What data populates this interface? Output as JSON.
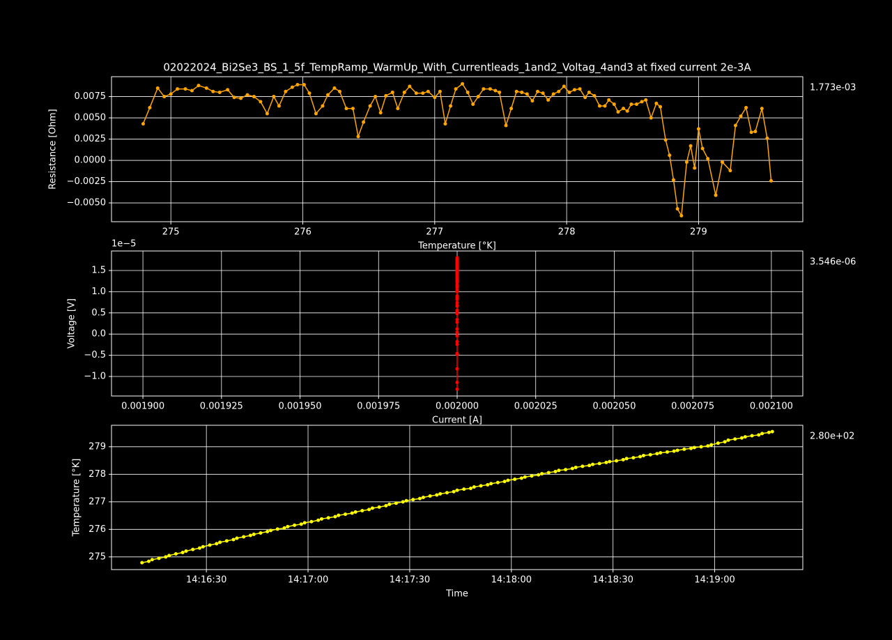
{
  "chart_data": [
    {
      "type": "line",
      "title": "02022024_Bi2Se3_BS_1_5f_TempRamp_WarmUp_With_Currentleads_1and2_Voltag_4and3 at fixed current 2e-3A",
      "x_label": "Temperature [°K]",
      "y_label": "Resistance [Ohm]",
      "annotation": "1.773e-03",
      "grid": true,
      "x": [
        274.79,
        274.84,
        274.9,
        274.95,
        275.0,
        275.05,
        275.11,
        275.16,
        275.21,
        275.27,
        275.32,
        275.37,
        275.43,
        275.48,
        275.53,
        275.58,
        275.63,
        275.68,
        275.73,
        275.78,
        275.82,
        275.87,
        275.92,
        275.96,
        276.01,
        276.05,
        276.1,
        276.15,
        276.19,
        276.24,
        276.28,
        276.33,
        276.38,
        276.42,
        276.46,
        276.51,
        276.55,
        276.59,
        276.63,
        276.68,
        276.72,
        276.77,
        276.81,
        276.86,
        276.91,
        276.95,
        277.0,
        277.04,
        277.08,
        277.12,
        277.16,
        277.21,
        277.25,
        277.29,
        277.33,
        277.37,
        277.42,
        277.46,
        277.49,
        277.54,
        277.58,
        277.62,
        277.66,
        277.7,
        277.74,
        277.78,
        277.82,
        277.86,
        277.9,
        277.94,
        277.98,
        278.02,
        278.06,
        278.1,
        278.14,
        278.17,
        278.21,
        278.25,
        278.29,
        278.32,
        278.36,
        278.39,
        278.43,
        278.46,
        278.49,
        278.53,
        278.57,
        278.6,
        278.64,
        278.68,
        278.71,
        278.75,
        278.78,
        278.81,
        278.84,
        278.87,
        278.91,
        278.94,
        278.97,
        279.0,
        279.03,
        279.07,
        279.13,
        279.18,
        279.24,
        279.28,
        279.32,
        279.36,
        279.4,
        279.43,
        279.48,
        279.52,
        279.55
      ],
      "series": [
        {
          "color": "#ffa500",
          "values": [
            0.0043,
            0.0062,
            0.0085,
            0.0075,
            0.0078,
            0.0084,
            0.0084,
            0.0082,
            0.0088,
            0.0085,
            0.0081,
            0.008,
            0.0083,
            0.0074,
            0.0073,
            0.0077,
            0.0075,
            0.0069,
            0.0055,
            0.0075,
            0.0064,
            0.0081,
            0.0086,
            0.0089,
            0.0089,
            0.0079,
            0.0055,
            0.0064,
            0.0077,
            0.0085,
            0.0081,
            0.0061,
            0.0061,
            0.0028,
            0.0045,
            0.0064,
            0.0075,
            0.0056,
            0.0076,
            0.008,
            0.0061,
            0.008,
            0.0087,
            0.0079,
            0.0079,
            0.0081,
            0.0074,
            0.0081,
            0.0043,
            0.0064,
            0.0084,
            0.009,
            0.008,
            0.0066,
            0.0075,
            0.0084,
            0.0084,
            0.0082,
            0.008,
            0.0041,
            0.0061,
            0.0081,
            0.008,
            0.0078,
            0.007,
            0.0081,
            0.0079,
            0.0071,
            0.0078,
            0.0081,
            0.0087,
            0.008,
            0.0083,
            0.0084,
            0.0074,
            0.008,
            0.0076,
            0.0064,
            0.0064,
            0.0071,
            0.0066,
            0.0057,
            0.0061,
            0.0058,
            0.0066,
            0.0066,
            0.0069,
            0.0071,
            0.005,
            0.0067,
            0.0063,
            0.0024,
            0.0006,
            -0.0023,
            -0.0057,
            -0.0065,
            -0.0002,
            0.0017,
            -0.0009,
            0.0037,
            0.0014,
            0.0002,
            -0.0041,
            -0.0002,
            -0.0012,
            0.0041,
            0.0052,
            0.0062,
            0.0033,
            0.0034,
            0.0061,
            0.0026,
            -0.0024
          ]
        }
      ],
      "xlim": [
        274.55,
        279.79
      ],
      "ylim": [
        -0.00721,
        0.00984
      ],
      "xticks": [
        275,
        276,
        277,
        278,
        279
      ],
      "yticks": [
        {
          "value": -0.005,
          "label": "−0.0050"
        },
        {
          "value": -0.0025,
          "label": "−0.0025"
        },
        {
          "value": 0,
          "label": "0.0000"
        },
        0.0025,
        {
          "value": 0.005,
          "label": "0.0050"
        },
        0.0075
      ]
    },
    {
      "type": "line",
      "x_label": "Current [A]",
      "y_label": "Voltage [V]",
      "y_offset_label": "1e−5",
      "annotation": "3.546e-06",
      "grid": true,
      "x": [
        0.002,
        0.002,
        0.002,
        0.002,
        0.002,
        0.002,
        0.002,
        0.002,
        0.002,
        0.002,
        0.002,
        0.002,
        0.002,
        0.002,
        0.002,
        0.002,
        0.002,
        0.002,
        0.002,
        0.002,
        0.002,
        0.002,
        0.002,
        0.002,
        0.002,
        0.002,
        0.002,
        0.002,
        0.002,
        0.002,
        0.002,
        0.002,
        0.002,
        0.002,
        0.002,
        0.002,
        0.002,
        0.002,
        0.002,
        0.002,
        0.002,
        0.002,
        0.002,
        0.002,
        0.002,
        0.002,
        0.002,
        0.002,
        0.002,
        0.002,
        0.002,
        0.002,
        0.002,
        0.002,
        0.002,
        0.002,
        0.002,
        0.002,
        0.002,
        0.002,
        0.002,
        0.002,
        0.002,
        0.002,
        0.002,
        0.002,
        0.002,
        0.002,
        0.002,
        0.002,
        0.002,
        0.002,
        0.002,
        0.002,
        0.002,
        0.002,
        0.002,
        0.002,
        0.002,
        0.002,
        0.002,
        0.002,
        0.002,
        0.002,
        0.002,
        0.002,
        0.002,
        0.002,
        0.002,
        0.002,
        0.002,
        0.002,
        0.002,
        0.002,
        0.002,
        0.002,
        0.002,
        0.002,
        0.002,
        0.002,
        0.002,
        0.002,
        0.002,
        0.002,
        0.002,
        0.002,
        0.002,
        0.002,
        0.002,
        0.002,
        0.002,
        0.002,
        0.002
      ],
      "series": [
        {
          "color": "#ff0000",
          "values": [
            8.6e-06,
            1.24e-05,
            1.7e-05,
            1.5e-05,
            1.56e-05,
            1.68e-05,
            1.68e-05,
            1.64e-05,
            1.76e-05,
            1.7e-05,
            1.62e-05,
            1.6e-05,
            1.66e-05,
            1.48e-05,
            1.46e-05,
            1.54e-05,
            1.5e-05,
            1.38e-05,
            1.1e-05,
            1.5e-05,
            1.28e-05,
            1.62e-05,
            1.72e-05,
            1.78e-05,
            1.78e-05,
            1.58e-05,
            1.1e-05,
            1.28e-05,
            1.54e-05,
            1.7e-05,
            1.62e-05,
            1.22e-05,
            1.22e-05,
            5.6e-06,
            9e-06,
            1.28e-05,
            1.5e-05,
            1.12e-05,
            1.52e-05,
            1.6e-05,
            1.22e-05,
            1.6e-05,
            1.74e-05,
            1.58e-05,
            1.58e-05,
            1.62e-05,
            1.48e-05,
            1.62e-05,
            8.6e-06,
            1.28e-05,
            1.68e-05,
            1.8e-05,
            1.6e-05,
            1.32e-05,
            1.5e-05,
            1.68e-05,
            1.68e-05,
            1.64e-05,
            1.6e-05,
            8.2e-06,
            1.22e-05,
            1.62e-05,
            1.6e-05,
            1.56e-05,
            1.4e-05,
            1.62e-05,
            1.58e-05,
            1.42e-05,
            1.56e-05,
            1.62e-05,
            1.74e-05,
            1.6e-05,
            1.66e-05,
            1.68e-05,
            1.48e-05,
            1.6e-05,
            1.52e-05,
            1.28e-05,
            1.28e-05,
            1.42e-05,
            1.32e-05,
            1.14e-05,
            1.22e-05,
            1.16e-05,
            1.32e-05,
            1.32e-05,
            1.38e-05,
            1.42e-05,
            1e-05,
            1.34e-05,
            1.26e-05,
            4.8e-06,
            1.2e-06,
            -4.6e-06,
            -1.14e-05,
            -1.3e-05,
            -4e-07,
            3.4e-06,
            -1.8e-06,
            7.4e-06,
            2.8e-06,
            4e-07,
            -8.2e-06,
            -4e-07,
            -2.4e-06,
            8.2e-06,
            1.04e-05,
            1.24e-05,
            6.6e-06,
            6.8e-06,
            1.22e-05,
            5.2e-06,
            -4.8e-06
          ]
        }
      ],
      "xlim": [
        0.00189,
        0.00211
      ],
      "ylim": [
        -1.46e-05,
        1.96e-05
      ],
      "xticks": [
        {
          "value": 0.0019,
          "label": "0.001900"
        },
        {
          "value": 0.001925,
          "label": "0.001925"
        },
        {
          "value": 0.00195,
          "label": "0.001950"
        },
        {
          "value": 0.001975,
          "label": "0.001975"
        },
        {
          "value": 0.002,
          "label": "0.002000"
        },
        {
          "value": 0.002025,
          "label": "0.002025"
        },
        {
          "value": 0.00205,
          "label": "0.002050"
        },
        {
          "value": 0.002075,
          "label": "0.002075"
        },
        {
          "value": 0.0021,
          "label": "0.002100"
        }
      ],
      "yticks": [
        {
          "value": -1e-05,
          "label": "−1.0"
        },
        {
          "value": -5e-06,
          "label": "−0.5"
        },
        {
          "value": 0,
          "label": "0.0"
        },
        {
          "value": 5e-06,
          "label": "0.5"
        },
        {
          "value": 1e-05,
          "label": "1.0"
        },
        {
          "value": 1.5e-05,
          "label": "1.5"
        }
      ]
    },
    {
      "type": "line",
      "x_label": "Time",
      "y_label": "Temperature [°K]",
      "annotation": "2.80e+02",
      "grid": true,
      "x": [
        "14:16:11",
        "14:16:13",
        "14:16:14",
        "14:16:16",
        "14:16:18",
        "14:16:19",
        "14:16:21",
        "14:16:23",
        "14:16:24",
        "14:16:26",
        "14:16:28",
        "14:16:29",
        "14:16:31",
        "14:16:33",
        "14:16:34",
        "14:16:36",
        "14:16:38",
        "14:16:39",
        "14:16:41",
        "14:16:43",
        "14:16:44",
        "14:16:46",
        "14:16:48",
        "14:16:49",
        "14:16:51",
        "14:16:53",
        "14:16:54",
        "14:16:56",
        "14:16:58",
        "14:16:59",
        "14:17:01",
        "14:17:03",
        "14:17:04",
        "14:17:06",
        "14:17:08",
        "14:17:09",
        "14:17:11",
        "14:17:13",
        "14:17:14",
        "14:17:16",
        "14:17:18",
        "14:17:19",
        "14:17:21",
        "14:17:23",
        "14:17:24",
        "14:17:26",
        "14:17:28",
        "14:17:29",
        "14:17:31",
        "14:17:33",
        "14:17:34",
        "14:17:36",
        "14:17:38",
        "14:17:39",
        "14:17:41",
        "14:17:43",
        "14:17:44",
        "14:17:46",
        "14:17:48",
        "14:17:49",
        "14:17:51",
        "14:17:53",
        "14:17:54",
        "14:17:56",
        "14:17:58",
        "14:17:59",
        "14:18:01",
        "14:18:03",
        "14:18:04",
        "14:18:06",
        "14:18:08",
        "14:18:09",
        "14:18:11",
        "14:18:13",
        "14:18:14",
        "14:18:16",
        "14:18:18",
        "14:18:19",
        "14:18:21",
        "14:18:23",
        "14:18:24",
        "14:18:26",
        "14:18:28",
        "14:18:29",
        "14:18:31",
        "14:18:33",
        "14:18:34",
        "14:18:36",
        "14:18:38",
        "14:18:39",
        "14:18:41",
        "14:18:43",
        "14:18:44",
        "14:18:46",
        "14:18:48",
        "14:18:49",
        "14:18:51",
        "14:18:53",
        "14:18:54",
        "14:18:56",
        "14:18:58",
        "14:18:59",
        "14:19:01",
        "14:19:03",
        "14:19:04",
        "14:19:06",
        "14:19:08",
        "14:19:09",
        "14:19:11",
        "14:19:13",
        "14:19:14",
        "14:19:16",
        "14:19:17"
      ],
      "series": [
        {
          "color": "#ffff00",
          "values": [
            274.79,
            274.84,
            274.9,
            274.95,
            275.0,
            275.05,
            275.11,
            275.16,
            275.21,
            275.27,
            275.32,
            275.37,
            275.43,
            275.48,
            275.53,
            275.58,
            275.63,
            275.68,
            275.73,
            275.78,
            275.82,
            275.87,
            275.92,
            275.96,
            276.01,
            276.05,
            276.1,
            276.15,
            276.19,
            276.24,
            276.28,
            276.33,
            276.38,
            276.42,
            276.46,
            276.51,
            276.55,
            276.59,
            276.63,
            276.68,
            276.72,
            276.77,
            276.81,
            276.86,
            276.91,
            276.95,
            277.0,
            277.04,
            277.08,
            277.12,
            277.16,
            277.21,
            277.25,
            277.29,
            277.33,
            277.37,
            277.42,
            277.46,
            277.49,
            277.54,
            277.58,
            277.62,
            277.66,
            277.7,
            277.74,
            277.78,
            277.82,
            277.86,
            277.9,
            277.94,
            277.98,
            278.02,
            278.06,
            278.1,
            278.14,
            278.17,
            278.21,
            278.25,
            278.29,
            278.32,
            278.36,
            278.39,
            278.43,
            278.46,
            278.49,
            278.53,
            278.57,
            278.6,
            278.64,
            278.68,
            278.71,
            278.75,
            278.78,
            278.81,
            278.84,
            278.87,
            278.91,
            278.94,
            278.97,
            279.0,
            279.03,
            279.07,
            279.13,
            279.18,
            279.24,
            279.28,
            279.32,
            279.36,
            279.4,
            279.43,
            279.48,
            279.52,
            279.55
          ]
        }
      ],
      "xlim": [
        "14:16:02",
        "14:19:26"
      ],
      "ylim": [
        274.54,
        279.78
      ],
      "xticks": [
        "14:16:30",
        "14:17:00",
        "14:17:30",
        "14:18:00",
        "14:18:30",
        "14:19:00"
      ],
      "yticks": [
        275,
        276,
        277,
        278,
        279
      ]
    }
  ]
}
